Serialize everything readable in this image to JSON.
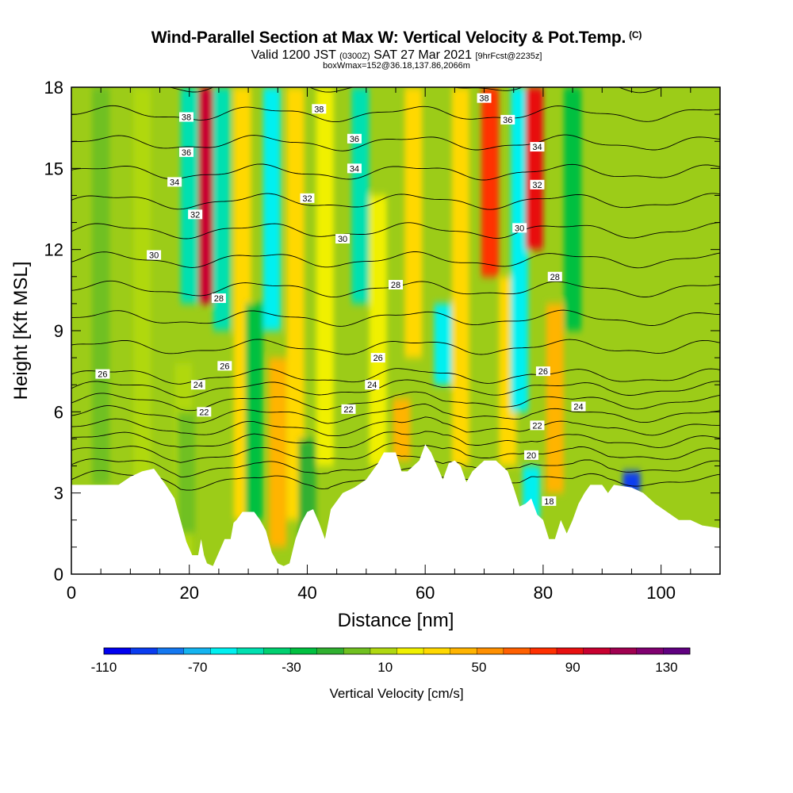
{
  "chart_data": {
    "type": "heatmap",
    "title": "Wind-Parallel Section at Max W: Vertical Velocity & Pot.Temp.",
    "title_mark": "(C)",
    "subtitle_main_a": "Valid 1200 JST",
    "subtitle_small_a": "(0300Z)",
    "subtitle_main_b": "SAT 27 Mar 2021",
    "subtitle_small_b": "[9hrFcst@2235z]",
    "subtitle2": "boxWmax=152@36.18,137.86,2066m",
    "xlabel": "Distance [nm]",
    "ylabel": "Height [Kft MSL]",
    "xlim": [
      0,
      110
    ],
    "ylim": [
      0,
      18
    ],
    "x_ticks": [
      0,
      20,
      40,
      60,
      80,
      100
    ],
    "y_ticks": [
      0,
      3,
      6,
      9,
      12,
      15,
      18
    ],
    "colorbar": {
      "label": "Vertical Velocity [cm/s]",
      "range": [
        -110,
        140
      ],
      "tick_values": [
        -110,
        -70,
        -30,
        10,
        50,
        90,
        130
      ],
      "colors": [
        "#0000f0",
        "#0a3cf0",
        "#1478f0",
        "#14b4f0",
        "#00f0f0",
        "#00e0b0",
        "#00d070",
        "#00c040",
        "#30b030",
        "#70c020",
        "#b0d810",
        "#f0f000",
        "#ffd800",
        "#ffb400",
        "#ff9000",
        "#ff6000",
        "#ff3000",
        "#e81010",
        "#c80030",
        "#a00050",
        "#800070",
        "#600080"
      ]
    },
    "velocity_columns": [
      {
        "x": 5,
        "w": 2,
        "zmin": 3.3,
        "zmax": 18
      },
      {
        "x": 12,
        "w": 6,
        "zmin": 3.5,
        "zmax": 18
      },
      {
        "x": 19,
        "w": 6,
        "zmin": 0.5,
        "zmax": 7.8
      },
      {
        "x": 19.5,
        "w": 2.5,
        "zmin": 1.5,
        "zmax": 6
      },
      {
        "x": 20,
        "w": -48,
        "zmin": 10,
        "zmax": 18
      },
      {
        "x": 23,
        "w": 100,
        "zmin": 10,
        "zmax": 18
      },
      {
        "x": 25.5,
        "w": -45,
        "zmin": 9,
        "zmax": 18
      },
      {
        "x": 29,
        "w": 35,
        "zmin": 2,
        "zmax": 18
      },
      {
        "x": 31,
        "w": -30,
        "zmin": 2,
        "zmax": 10
      },
      {
        "x": 34,
        "w": -60,
        "zmin": 9,
        "zmax": 18
      },
      {
        "x": 35,
        "w": 45,
        "zmin": 1,
        "zmax": 8
      },
      {
        "x": 38,
        "w": 30,
        "zmin": 2,
        "zmax": 18
      },
      {
        "x": 40,
        "w": -10,
        "zmin": 0.3,
        "zmax": 5
      },
      {
        "x": 43,
        "w": 25,
        "zmin": 4,
        "zmax": 18
      },
      {
        "x": 49,
        "w": -45,
        "zmin": 10,
        "zmax": 18
      },
      {
        "x": 52,
        "w": 20,
        "zmin": 4,
        "zmax": 14
      },
      {
        "x": 56,
        "w": 45,
        "zmin": 4.2,
        "zmax": 6.5
      },
      {
        "x": 58,
        "w": 30,
        "zmin": 8,
        "zmax": 18
      },
      {
        "x": 63,
        "w": -55,
        "zmin": 7,
        "zmax": 10
      },
      {
        "x": 66,
        "w": 30,
        "zmin": 4,
        "zmax": 18
      },
      {
        "x": 71,
        "w": 75,
        "zmin": 11,
        "zmax": 18
      },
      {
        "x": 74,
        "w": 30,
        "zmin": 4,
        "zmax": 11
      },
      {
        "x": 76,
        "w": -55,
        "zmin": 6,
        "zmax": 18
      },
      {
        "x": 78.5,
        "w": 90,
        "zmin": 12,
        "zmax": 18
      },
      {
        "x": 78,
        "w": -60,
        "zmin": 2,
        "zmax": 4
      },
      {
        "x": 82,
        "w": 40,
        "zmin": 3,
        "zmax": 10
      },
      {
        "x": 85,
        "w": -30,
        "zmin": 9,
        "zmax": 18
      },
      {
        "x": 95,
        "w": -95,
        "zmin": 3,
        "zmax": 3.8
      }
    ],
    "contour_labels": [
      {
        "x": 19.5,
        "y": 16.9,
        "text": "38"
      },
      {
        "x": 42,
        "y": 17.2,
        "text": "38"
      },
      {
        "x": 70,
        "y": 17.6,
        "text": "38"
      },
      {
        "x": 19.5,
        "y": 15.6,
        "text": "36"
      },
      {
        "x": 48,
        "y": 16.1,
        "text": "36"
      },
      {
        "x": 74,
        "y": 16.8,
        "text": "36"
      },
      {
        "x": 17.5,
        "y": 14.5,
        "text": "34"
      },
      {
        "x": 48,
        "y": 15.0,
        "text": "34"
      },
      {
        "x": 79,
        "y": 15.8,
        "text": "34"
      },
      {
        "x": 21,
        "y": 13.3,
        "text": "32"
      },
      {
        "x": 40,
        "y": 13.9,
        "text": "32"
      },
      {
        "x": 79,
        "y": 14.4,
        "text": "32"
      },
      {
        "x": 14,
        "y": 11.8,
        "text": "30"
      },
      {
        "x": 46,
        "y": 12.4,
        "text": "30"
      },
      {
        "x": 76,
        "y": 12.8,
        "text": "30"
      },
      {
        "x": 25,
        "y": 10.2,
        "text": "28"
      },
      {
        "x": 55,
        "y": 10.7,
        "text": "28"
      },
      {
        "x": 82,
        "y": 11.0,
        "text": "28"
      },
      {
        "x": 5.3,
        "y": 7.4,
        "text": "26"
      },
      {
        "x": 26,
        "y": 7.7,
        "text": "26"
      },
      {
        "x": 52,
        "y": 8.0,
        "text": "26"
      },
      {
        "x": 80,
        "y": 7.5,
        "text": "26"
      },
      {
        "x": 21.5,
        "y": 7.0,
        "text": "24"
      },
      {
        "x": 51,
        "y": 7.0,
        "text": "24"
      },
      {
        "x": 86,
        "y": 6.2,
        "text": "24"
      },
      {
        "x": 22.5,
        "y": 6.0,
        "text": "22"
      },
      {
        "x": 47,
        "y": 6.1,
        "text": "22"
      },
      {
        "x": 79,
        "y": 5.5,
        "text": "22"
      },
      {
        "x": 78,
        "y": 4.4,
        "text": "20"
      },
      {
        "x": 81,
        "y": 2.7,
        "text": "18"
      }
    ],
    "terrain_profile": [
      [
        0,
        3.3
      ],
      [
        8,
        3.3
      ],
      [
        10,
        3.6
      ],
      [
        12,
        3.8
      ],
      [
        14,
        3.9
      ],
      [
        16,
        3.3
      ],
      [
        17.5,
        2.8
      ],
      [
        18.5,
        2.0
      ],
      [
        19.5,
        1.2
      ],
      [
        20.5,
        0.7
      ],
      [
        21.5,
        0.7
      ],
      [
        22,
        1.3
      ],
      [
        22.5,
        0.7
      ],
      [
        23,
        0.4
      ],
      [
        24,
        0.3
      ],
      [
        25,
        0.8
      ],
      [
        26,
        1.3
      ],
      [
        27,
        1.3
      ],
      [
        27.5,
        1.9
      ],
      [
        28,
        2.0
      ],
      [
        29,
        2.3
      ],
      [
        31,
        2.3
      ],
      [
        32,
        2.0
      ],
      [
        33,
        1.6
      ],
      [
        34,
        0.8
      ],
      [
        35,
        0.4
      ],
      [
        36,
        0.3
      ],
      [
        37,
        0.4
      ],
      [
        38,
        1.3
      ],
      [
        39,
        1.9
      ],
      [
        40,
        2.3
      ],
      [
        41,
        2.4
      ],
      [
        42,
        1.9
      ],
      [
        43,
        1.3
      ],
      [
        44,
        2.4
      ],
      [
        46,
        3.0
      ],
      [
        48,
        3.2
      ],
      [
        50,
        3.5
      ],
      [
        52,
        4.1
      ],
      [
        53,
        4.5
      ],
      [
        55,
        4.5
      ],
      [
        56,
        3.8
      ],
      [
        57,
        3.8
      ],
      [
        59,
        4.2
      ],
      [
        60,
        4.8
      ],
      [
        61,
        4.5
      ],
      [
        62,
        4.0
      ],
      [
        63,
        3.5
      ],
      [
        64,
        4.1
      ],
      [
        65,
        4.2
      ],
      [
        66,
        4.0
      ],
      [
        67,
        3.4
      ],
      [
        68,
        3.8
      ],
      [
        70,
        4.2
      ],
      [
        72,
        4.2
      ],
      [
        74,
        3.8
      ],
      [
        75,
        3.2
      ],
      [
        76,
        2.5
      ],
      [
        77,
        2.6
      ],
      [
        78,
        2.8
      ],
      [
        79,
        2.2
      ],
      [
        80,
        2.0
      ],
      [
        81,
        1.3
      ],
      [
        82,
        1.3
      ],
      [
        83,
        2.0
      ],
      [
        84,
        1.5
      ],
      [
        85,
        2.0
      ],
      [
        86,
        2.6
      ],
      [
        87,
        3.0
      ],
      [
        88,
        3.3
      ],
      [
        90,
        3.3
      ],
      [
        91,
        3.0
      ],
      [
        92,
        3.3
      ],
      [
        95,
        3.2
      ],
      [
        97,
        3.0
      ],
      [
        99,
        2.6
      ],
      [
        101,
        2.3
      ],
      [
        103,
        2.0
      ],
      [
        105,
        2.0
      ],
      [
        107,
        1.8
      ],
      [
        110,
        1.7
      ]
    ]
  }
}
